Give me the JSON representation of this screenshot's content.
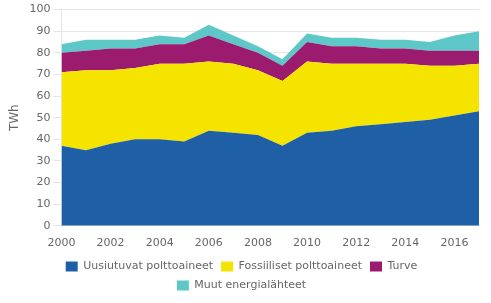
{
  "chart_data": {
    "type": "area",
    "stacked": true,
    "x": [
      2000,
      2001,
      2002,
      2003,
      2004,
      2005,
      2006,
      2007,
      2008,
      2009,
      2010,
      2011,
      2012,
      2013,
      2014,
      2015,
      2016,
      2017
    ],
    "series": [
      {
        "name": "Uusiutuvat polttoaineet",
        "color": "#1f5fa6",
        "values": [
          37,
          35,
          38,
          40,
          40,
          39,
          44,
          43,
          42,
          37,
          43,
          44,
          46,
          47,
          48,
          49,
          51,
          53
        ]
      },
      {
        "name": "Fossiiliset polttoaineet",
        "color": "#f5e400",
        "values": [
          34,
          37,
          34,
          33,
          35,
          36,
          32,
          32,
          30,
          30,
          33,
          31,
          29,
          28,
          27,
          25,
          23,
          22
        ]
      },
      {
        "name": "Turve",
        "color": "#9b1b6e",
        "values": [
          9,
          9,
          10,
          9,
          9,
          9,
          12,
          9,
          8,
          7,
          9,
          8,
          8,
          7,
          7,
          7,
          7,
          6
        ]
      },
      {
        "name": "Muut energialähteet",
        "color": "#5ec8c8",
        "values": [
          4,
          5,
          4,
          4,
          4,
          3,
          5,
          4,
          3,
          3,
          4,
          4,
          4,
          4,
          4,
          4,
          7,
          9
        ]
      }
    ],
    "ylabel": "TWh",
    "xlim": [
      2000,
      2017
    ],
    "xticks": [
      2000,
      2002,
      2004,
      2006,
      2008,
      2010,
      2012,
      2014,
      2016
    ],
    "ylim": [
      0,
      100
    ],
    "yticks": [
      0,
      10,
      20,
      30,
      40,
      50,
      60,
      70,
      80,
      90,
      100
    ],
    "grid": true,
    "legend": "bottom"
  }
}
